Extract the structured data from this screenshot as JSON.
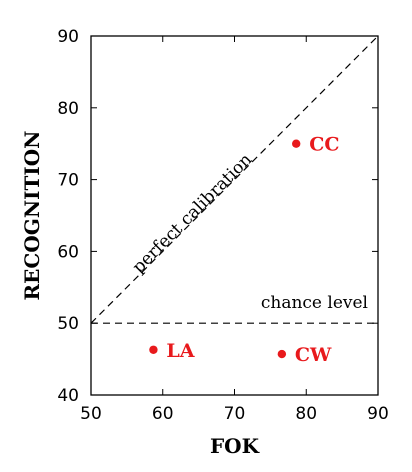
{
  "chart_data": {
    "type": "scatter",
    "xlabel": "FOK",
    "ylabel": "RECOGNITION",
    "xlim": [
      50,
      90
    ],
    "ylim": [
      40,
      90
    ],
    "xticks": [
      50,
      60,
      70,
      80,
      90
    ],
    "yticks": [
      40,
      50,
      60,
      70,
      80,
      90
    ],
    "grid": false,
    "points": [
      {
        "label": "CC",
        "x": 78.6,
        "y": 75.0
      },
      {
        "label": "LA",
        "x": 58.7,
        "y": 46.3
      },
      {
        "label": "CW",
        "x": 76.6,
        "y": 45.7
      }
    ],
    "point_color": "#e8191c",
    "reference_lines": [
      {
        "label": "perfect calibration",
        "kind": "diagonal",
        "from": [
          50,
          50
        ],
        "to": [
          90,
          90
        ]
      },
      {
        "label": "chance level",
        "kind": "horizontal",
        "y": 50
      }
    ]
  }
}
